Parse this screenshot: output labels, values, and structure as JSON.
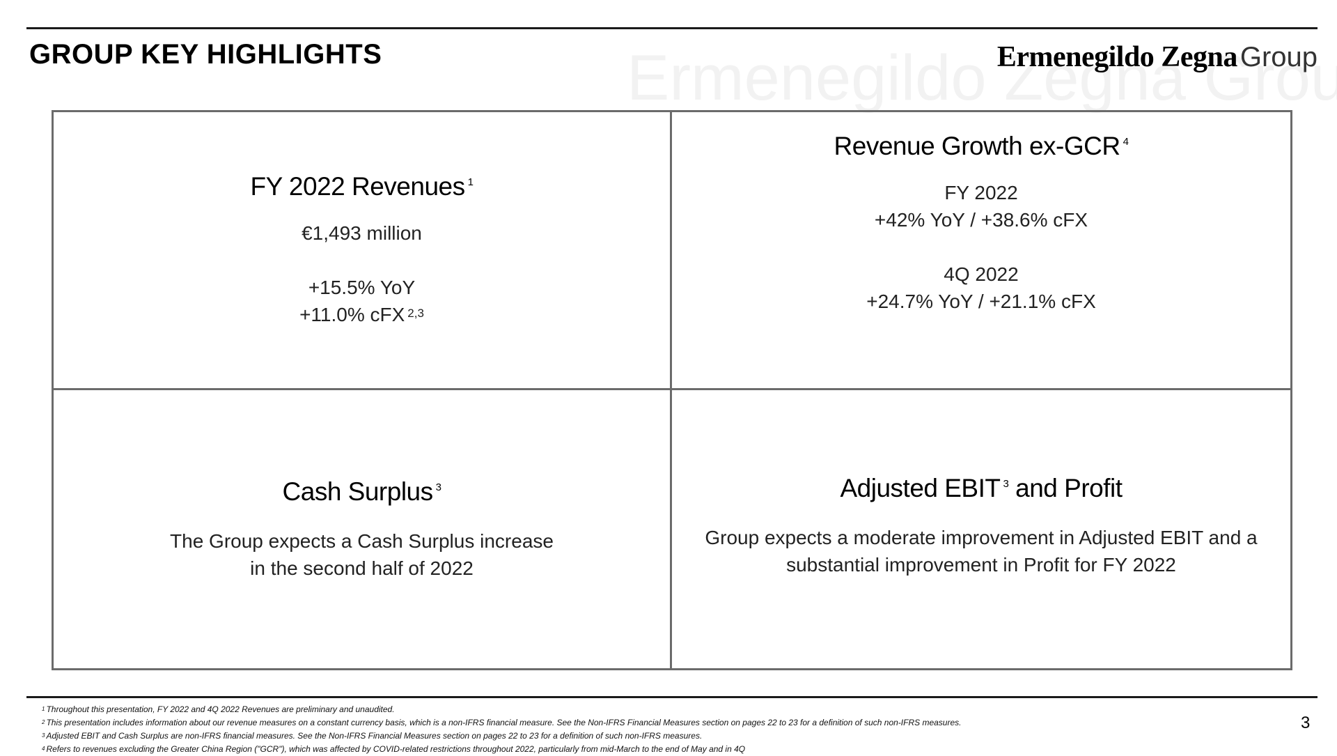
{
  "header": {
    "title": "GROUP KEY HIGHLIGHTS",
    "logo_brand": "Ermenegildo Zegna",
    "logo_suffix": "Group",
    "watermark": "Ermenegildo Zegna Group"
  },
  "cells": {
    "revenues": {
      "title": "FY 2022 Revenues",
      "title_sup": "1",
      "amount": "€1,493 million",
      "yoy": "+15.5% YoY",
      "cfx": "+11.0% cFX",
      "cfx_sup": "2,3"
    },
    "growth": {
      "title": "Revenue Growth ex-GCR",
      "title_sup": "4",
      "fy_label": "FY 2022",
      "fy_value": "+42% YoY / +38.6% cFX",
      "q4_label": "4Q 2022",
      "q4_value": "+24.7% YoY / +21.1% cFX"
    },
    "cash": {
      "title": "Cash Surplus",
      "title_sup": "3",
      "line1": "The Group expects a Cash Surplus increase",
      "line2": "in the second half of 2022"
    },
    "ebit": {
      "title_part1": "Adjusted EBIT",
      "title_sup": "3",
      "title_part2": " and Profit",
      "line1": "Group expects a moderate improvement in Adjusted EBIT and a",
      "line2": "substantial improvement in Profit for FY 2022"
    }
  },
  "footnotes": [
    {
      "num": "1",
      "text": "Throughout this presentation, FY 2022 and 4Q 2022 Revenues are preliminary and unaudited."
    },
    {
      "num": "2",
      "text": "This presentation includes information about our revenue measures on a constant currency basis, which is a non-IFRS financial measure. See the Non-IFRS Financial Measures section on pages 22 to 23 for a definition of such non-IFRS measures."
    },
    {
      "num": "3",
      "text": "Adjusted EBIT and Cash Surplus are non-IFRS financial measures. See the Non-IFRS Financial Measures section on pages 22 to 23 for a definition of such non-IFRS measures."
    },
    {
      "num": "4",
      "text": "Refers to revenues excluding the Greater China Region (\"GCR\"), which was affected by COVID-related restrictions throughout 2022, particularly from mid-March to the end of May and in 4Q"
    }
  ],
  "page_number": "3"
}
